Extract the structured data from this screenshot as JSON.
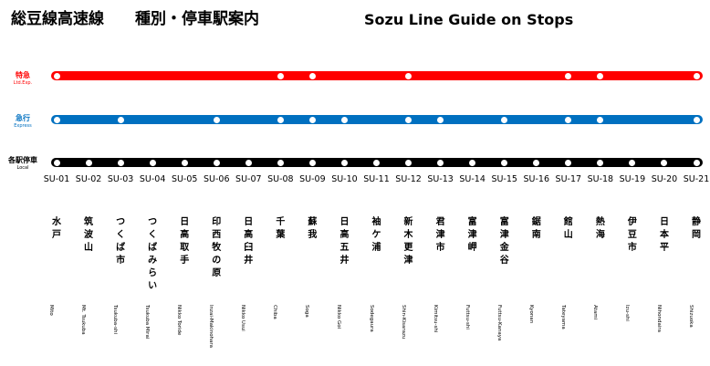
{
  "header": {
    "title_jp": "総豆線高速線　　種別・停車駅案内",
    "title_en": "Sozu Line Guide on Stops"
  },
  "services": [
    {
      "jp": "特急",
      "en": "Ltd.Exp.",
      "color": "#ff0000",
      "stops": [
        1,
        8,
        9,
        12,
        17,
        18,
        21
      ]
    },
    {
      "jp": "急行",
      "en": "Express",
      "color": "#0070c0",
      "stops": [
        1,
        3,
        6,
        8,
        9,
        10,
        12,
        13,
        15,
        17,
        18,
        21
      ]
    },
    {
      "jp": "各駅停車",
      "en": "Local",
      "color": "#000000",
      "stops": [
        1,
        2,
        3,
        4,
        5,
        6,
        7,
        8,
        9,
        10,
        11,
        12,
        13,
        14,
        15,
        16,
        17,
        18,
        19,
        20,
        21
      ]
    }
  ],
  "stations": [
    {
      "code": "SU-01",
      "jp": "水戸",
      "en": "Mito"
    },
    {
      "code": "SU-02",
      "jp": "筑波山",
      "en": "Mt. Tsukuba"
    },
    {
      "code": "SU-03",
      "jp": "つくば市",
      "en": "Tsukuba-shi"
    },
    {
      "code": "SU-04",
      "jp": "つくばみらい",
      "en": "Tsukuba Mirai"
    },
    {
      "code": "SU-05",
      "jp": "日高取手",
      "en": "Nikko Toride"
    },
    {
      "code": "SU-06",
      "jp": "印西牧の原",
      "en": "Inzai-Makinohara"
    },
    {
      "code": "SU-07",
      "jp": "日高臼井",
      "en": "Nikko Usui"
    },
    {
      "code": "SU-08",
      "jp": "千葉",
      "en": "Chiba"
    },
    {
      "code": "SU-09",
      "jp": "蘇我",
      "en": "Soga"
    },
    {
      "code": "SU-10",
      "jp": "日高五井",
      "en": "Nikko Goi"
    },
    {
      "code": "SU-11",
      "jp": "袖ケ浦",
      "en": "Sodegaura"
    },
    {
      "code": "SU-12",
      "jp": "新木更津",
      "en": "Shin-Kisarazu"
    },
    {
      "code": "SU-13",
      "jp": "君津市",
      "en": "Kimitsu-shi"
    },
    {
      "code": "SU-14",
      "jp": "富津岬",
      "en": "Futtsu-shi"
    },
    {
      "code": "SU-15",
      "jp": "富津金谷",
      "en": "Futtsu-Kanaya"
    },
    {
      "code": "SU-16",
      "jp": "鋸南",
      "en": "Kyonan"
    },
    {
      "code": "SU-17",
      "jp": "館山",
      "en": "Tateyama"
    },
    {
      "code": "SU-18",
      "jp": "熱海",
      "en": "Atami"
    },
    {
      "code": "SU-19",
      "jp": "伊豆市",
      "en": "Izu-shi"
    },
    {
      "code": "SU-20",
      "jp": "日本平",
      "en": "Nihondaira"
    },
    {
      "code": "SU-21",
      "jp": "静岡",
      "en": "Shizuoka"
    }
  ]
}
